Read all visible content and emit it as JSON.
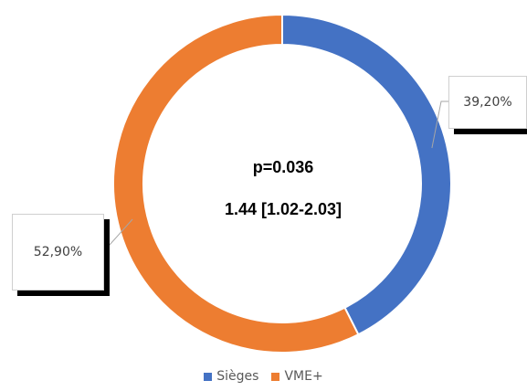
{
  "chart_data": {
    "type": "pie",
    "variant": "doughnut",
    "title": "",
    "series": [
      {
        "name": "Sièges",
        "value": 39.2,
        "label": "39,20%",
        "color": "#4472C4"
      },
      {
        "name": "VME+",
        "value": 52.9,
        "label": "52,90%",
        "color": "#ED7D31"
      }
    ],
    "center_text": [
      "p=0.036",
      "1.44 [1.02-2.03]"
    ],
    "legend_position": "bottom"
  }
}
